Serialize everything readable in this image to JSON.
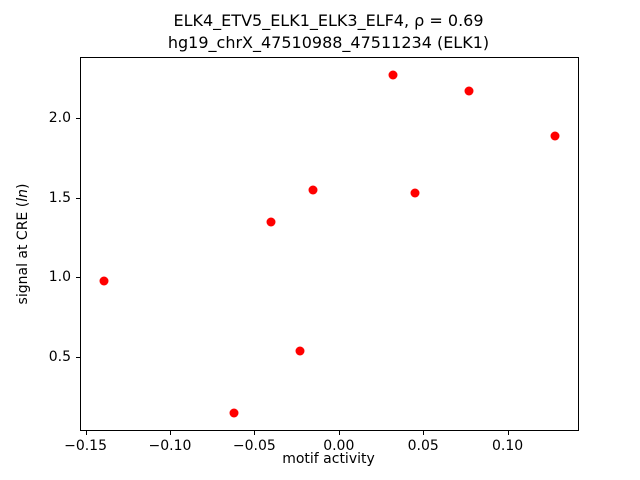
{
  "chart_data": {
    "type": "scatter",
    "title_line1": "ELK4_ETV5_ELK1_ELK3_ELF4, ρ = 0.69",
    "title_line2": "hg19_chrX_47510988_47511234 (ELK1)",
    "xlabel": "motif activity",
    "ylabel_prefix": "signal at CRE (",
    "ylabel_italic": "ln",
    "ylabel_suffix": ")",
    "marker_color": "#ff0000",
    "grid": false,
    "legend": "none",
    "xlim": [
      -0.1527,
      0.1417
    ],
    "ylim": [
      0.044,
      2.376
    ],
    "x_ticks": [
      {
        "value": -0.15,
        "label": "−0.15"
      },
      {
        "value": -0.1,
        "label": "−0.10"
      },
      {
        "value": -0.05,
        "label": "−0.05"
      },
      {
        "value": 0.0,
        "label": "0.00"
      },
      {
        "value": 0.05,
        "label": "0.05"
      },
      {
        "value": 0.1,
        "label": "0.10"
      }
    ],
    "y_ticks": [
      {
        "value": 0.5,
        "label": "0.5"
      },
      {
        "value": 1.0,
        "label": "1.0"
      },
      {
        "value": 1.5,
        "label": "1.5"
      },
      {
        "value": 2.0,
        "label": "2.0"
      }
    ],
    "points": [
      {
        "x": -0.139,
        "y": 0.98
      },
      {
        "x": -0.062,
        "y": 0.15
      },
      {
        "x": -0.04,
        "y": 1.35
      },
      {
        "x": -0.023,
        "y": 0.54
      },
      {
        "x": -0.015,
        "y": 1.55
      },
      {
        "x": 0.032,
        "y": 2.27
      },
      {
        "x": 0.045,
        "y": 1.53
      },
      {
        "x": 0.077,
        "y": 2.17
      },
      {
        "x": 0.128,
        "y": 1.89
      }
    ]
  }
}
